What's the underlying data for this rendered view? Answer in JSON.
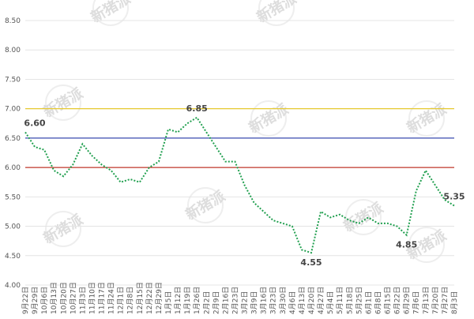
{
  "chart_data": {
    "type": "line",
    "watermark": "新猪派",
    "categories": [
      "9月22日",
      "9月29日",
      "10月6日",
      "10月13日",
      "10月20日",
      "10月27日",
      "11月3日",
      "11月10日",
      "11月17日",
      "11月24日",
      "12月1日",
      "12月8日",
      "12月15日",
      "12月22日",
      "12月29日",
      "1月5日",
      "1月12日",
      "1月19日",
      "1月26日",
      "2月2日",
      "2月9日",
      "2月16日",
      "2月23日",
      "3月2日",
      "3月9日",
      "3月16日",
      "3月23日",
      "3月30日",
      "4月6日",
      "4月13日",
      "4月20日",
      "4月27日",
      "5月4日",
      "5月11日",
      "5月18日",
      "5月25日",
      "6月1日",
      "6月8日",
      "6月15日",
      "6月22日",
      "6月29日",
      "7月6日",
      "7月13日",
      "7月20日",
      "7月27日",
      "8月3日"
    ],
    "series": [
      {
        "color": "#22a050",
        "values": [
          6.6,
          6.35,
          6.3,
          5.95,
          5.85,
          6.05,
          6.4,
          6.2,
          6.05,
          5.95,
          5.75,
          5.8,
          5.75,
          6.0,
          6.1,
          6.65,
          6.6,
          6.75,
          6.85,
          6.6,
          6.35,
          6.1,
          6.1,
          5.7,
          5.4,
          5.25,
          5.1,
          5.05,
          5.0,
          4.6,
          4.55,
          5.25,
          5.15,
          5.2,
          5.1,
          5.05,
          5.15,
          5.05,
          5.05,
          5.0,
          4.85,
          5.6,
          5.95,
          5.7,
          5.45,
          5.35
        ],
        "value_labels": [
          "6.60",
          null,
          null,
          null,
          null,
          null,
          null,
          null,
          null,
          null,
          null,
          null,
          null,
          null,
          null,
          null,
          null,
          null,
          "6.85",
          null,
          null,
          null,
          null,
          null,
          null,
          null,
          null,
          null,
          null,
          null,
          "4.55",
          null,
          null,
          null,
          null,
          null,
          null,
          null,
          null,
          null,
          "4.85",
          null,
          null,
          null,
          null,
          "5.35"
        ]
      }
    ],
    "reference_lines": [
      {
        "value": 7.0,
        "color": "#e6c619"
      },
      {
        "value": 6.5,
        "color": "#3a4bb0"
      },
      {
        "value": 6.0,
        "color": "#c0392b"
      }
    ],
    "ylim": [
      4.0,
      8.5
    ],
    "yticks": [
      {
        "value": 4.0,
        "label": "4.00"
      },
      {
        "value": 4.5,
        "label": "4.50"
      },
      {
        "value": 5.0,
        "label": "5.00"
      },
      {
        "value": 5.5,
        "label": "5.50"
      },
      {
        "value": 6.0,
        "label": "6.00"
      },
      {
        "value": 6.5,
        "label": "6.50"
      },
      {
        "value": 7.0,
        "label": "7.00"
      },
      {
        "value": 7.5,
        "label": "7.50"
      },
      {
        "value": 8.0,
        "label": "8.00"
      },
      {
        "value": 8.5,
        "label": "8.50"
      }
    ]
  }
}
